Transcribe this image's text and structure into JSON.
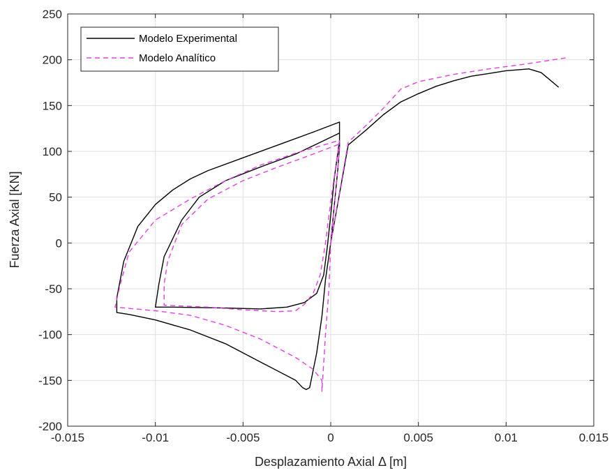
{
  "chart_data": {
    "type": "line",
    "xlabel": "Desplazamiento Axial Δ [m]",
    "ylabel": "Fuerza Axial [KN]",
    "xlim": [
      -0.015,
      0.015
    ],
    "ylim": [
      -200,
      250
    ],
    "xticks": [
      -0.015,
      -0.01,
      -0.005,
      0,
      0.005,
      0.01,
      0.015
    ],
    "xtick_labels": [
      "-0.015",
      "-0.01",
      "-0.005",
      "0",
      "0.005",
      "0.01",
      "0.015"
    ],
    "yticks": [
      -200,
      -150,
      -100,
      -50,
      0,
      50,
      100,
      150,
      200,
      250
    ],
    "ytick_labels": [
      "-200",
      "-150",
      "-100",
      "-50",
      "0",
      "50",
      "100",
      "150",
      "200",
      "250"
    ],
    "grid": true,
    "legend_position": "top-left",
    "series": [
      {
        "name": "Modelo Experimental",
        "color": "#000000",
        "style": "solid",
        "points": [
          [
            0,
            0
          ],
          [
            0.0002,
            40
          ],
          [
            0.0004,
            80
          ],
          [
            0.0005,
            105
          ],
          [
            0.0005,
            120
          ],
          [
            -0.0008,
            108
          ],
          [
            -0.002,
            97
          ],
          [
            -0.004,
            83
          ],
          [
            -0.006,
            68
          ],
          [
            -0.0075,
            50
          ],
          [
            -0.0085,
            25
          ],
          [
            -0.0095,
            -15
          ],
          [
            -0.0098,
            -45
          ],
          [
            -0.01,
            -70
          ],
          [
            -0.009,
            -70
          ],
          [
            -0.006,
            -71
          ],
          [
            -0.004,
            -72
          ],
          [
            -0.0025,
            -70
          ],
          [
            -0.0015,
            -65
          ],
          [
            -0.0008,
            -55
          ],
          [
            -0.0004,
            -35
          ],
          [
            -0.0002,
            -5
          ],
          [
            0,
            30
          ],
          [
            0.0002,
            70
          ],
          [
            0.0005,
            112
          ],
          [
            0.0005,
            132
          ],
          [
            -0.001,
            121
          ],
          [
            -0.003,
            107
          ],
          [
            -0.005,
            93
          ],
          [
            -0.007,
            79
          ],
          [
            -0.008,
            70
          ],
          [
            -0.009,
            58
          ],
          [
            -0.01,
            42
          ],
          [
            -0.011,
            18
          ],
          [
            -0.0118,
            -20
          ],
          [
            -0.0122,
            -60
          ],
          [
            -0.0122,
            -76
          ],
          [
            -0.0115,
            -78
          ],
          [
            -0.01,
            -84
          ],
          [
            -0.008,
            -95
          ],
          [
            -0.006,
            -110
          ],
          [
            -0.004,
            -130
          ],
          [
            -0.002,
            -150
          ],
          [
            -0.0016,
            -158
          ],
          [
            -0.0014,
            -160
          ],
          [
            -0.0012,
            -158
          ],
          [
            -0.0008,
            -120
          ],
          [
            -0.0005,
            -80
          ],
          [
            -0.0003,
            -40
          ],
          [
            0,
            0
          ],
          [
            0.001,
            107
          ],
          [
            0.002,
            123
          ],
          [
            0.003,
            140
          ],
          [
            0.004,
            154
          ],
          [
            0.005,
            163
          ],
          [
            0.006,
            171
          ],
          [
            0.007,
            177
          ],
          [
            0.008,
            182
          ],
          [
            0.009,
            185
          ],
          [
            0.01,
            188
          ],
          [
            0.0113,
            190
          ],
          [
            0.012,
            186
          ],
          [
            0.0125,
            178
          ],
          [
            0.013,
            170
          ]
        ]
      },
      {
        "name": "Modelo Analítico",
        "color": "#e040e0",
        "style": "dashed",
        "points": [
          [
            0,
            0
          ],
          [
            0.0002,
            40
          ],
          [
            0.0004,
            80
          ],
          [
            0.0005,
            108
          ],
          [
            -0.001,
            97
          ],
          [
            -0.003,
            83
          ],
          [
            -0.005,
            68
          ],
          [
            -0.007,
            48
          ],
          [
            -0.0085,
            20
          ],
          [
            -0.0093,
            -20
          ],
          [
            -0.0095,
            -45
          ],
          [
            -0.0095,
            -68
          ],
          [
            -0.007,
            -70
          ],
          [
            -0.005,
            -73
          ],
          [
            -0.003,
            -75
          ],
          [
            -0.002,
            -74
          ],
          [
            -0.0015,
            -67
          ],
          [
            -0.001,
            -55
          ],
          [
            -0.0006,
            -35
          ],
          [
            -0.0003,
            0
          ],
          [
            0,
            45
          ],
          [
            0.0003,
            85
          ],
          [
            0.0005,
            112
          ],
          [
            -0.002,
            98
          ],
          [
            -0.004,
            85
          ],
          [
            -0.006,
            68
          ],
          [
            -0.008,
            48
          ],
          [
            -0.01,
            25
          ],
          [
            -0.0115,
            -10
          ],
          [
            -0.012,
            -45
          ],
          [
            -0.0123,
            -70
          ],
          [
            -0.01,
            -74
          ],
          [
            -0.008,
            -79
          ],
          [
            -0.006,
            -90
          ],
          [
            -0.004,
            -105
          ],
          [
            -0.002,
            -125
          ],
          [
            -0.001,
            -138
          ],
          [
            -0.0005,
            -150
          ],
          [
            -0.0005,
            -162
          ],
          [
            -0.0003,
            -100
          ],
          [
            -0.0001,
            -50
          ],
          [
            0,
            0
          ],
          [
            0.001,
            110
          ],
          [
            0.002,
            128
          ],
          [
            0.003,
            147
          ],
          [
            0.004,
            168
          ],
          [
            0.005,
            176
          ],
          [
            0.007,
            184
          ],
          [
            0.009,
            190
          ],
          [
            0.011,
            195
          ],
          [
            0.0134,
            202
          ]
        ]
      }
    ]
  }
}
